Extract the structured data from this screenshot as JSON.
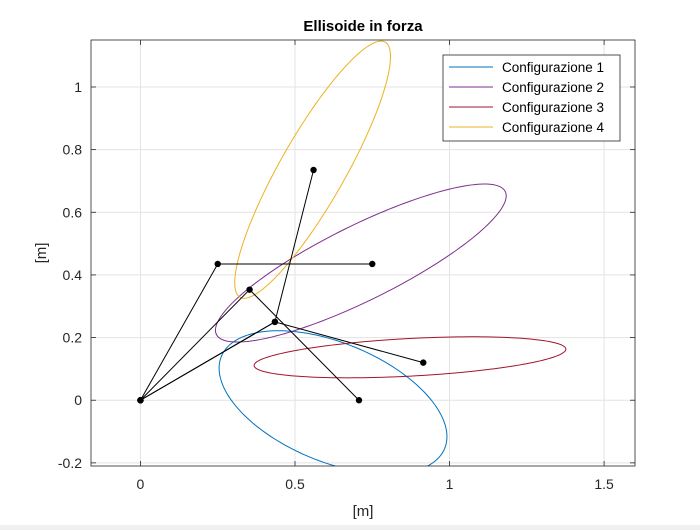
{
  "chart_data": {
    "type": "line",
    "title": "Ellisoide in forza",
    "xlabel": "[m]",
    "ylabel": "[m]",
    "xlim": [
      -0.16,
      1.6
    ],
    "ylim": [
      -0.21,
      1.15
    ],
    "grid": true,
    "legend_position": "top-right",
    "xticks": [
      {
        "value": 0,
        "label": "0"
      },
      {
        "value": 0.5,
        "label": "0.5"
      },
      {
        "value": 1,
        "label": "1"
      },
      {
        "value": 1.5,
        "label": "1.5"
      }
    ],
    "yticks": [
      {
        "value": -0.2,
        "label": "-0.2"
      },
      {
        "value": 0,
        "label": "0"
      },
      {
        "value": 0.2,
        "label": "0.2"
      },
      {
        "value": 0.4,
        "label": "0.4"
      },
      {
        "value": 0.6,
        "label": "0.6"
      },
      {
        "value": 0.8,
        "label": "0.8"
      },
      {
        "value": 1,
        "label": "1"
      }
    ],
    "series": [
      {
        "name": "Configurazione 1",
        "color": "#0072BD",
        "ellipse": {
          "center": [
            0.623,
            -0.007
          ],
          "semi_axes": [
            0.39,
            0.19
          ],
          "angle_deg": -22
        }
      },
      {
        "name": "Configurazione 2",
        "color": "#7E2F8E",
        "ellipse": {
          "center": [
            0.713,
            0.438
          ],
          "semi_axes": [
            0.52,
            0.12
          ],
          "angle_deg": 26
        }
      },
      {
        "name": "Configurazione 3",
        "color": "#A2142F",
        "ellipse": {
          "center": [
            0.872,
            0.137
          ],
          "semi_axes": [
            0.505,
            0.06
          ],
          "angle_deg": 3
        }
      },
      {
        "name": "Configurazione 4",
        "color": "#EDB120",
        "ellipse": {
          "center": [
            0.557,
            0.736
          ],
          "semi_axes": [
            0.47,
            0.105
          ],
          "angle_deg": 60
        }
      }
    ],
    "links": {
      "color": "#000000",
      "polylines": [
        [
          [
            0,
            0
          ],
          [
            0.435,
            0.25
          ],
          [
            0.56,
            0.735
          ]
        ],
        [
          [
            0,
            0
          ],
          [
            0.25,
            0.435
          ],
          [
            0.75,
            0.435
          ]
        ],
        [
          [
            0,
            0
          ],
          [
            0.353,
            0.353
          ],
          [
            0.707,
            0
          ]
        ],
        [
          [
            0,
            0
          ],
          [
            0.435,
            0.25
          ],
          [
            0.915,
            0.12
          ]
        ]
      ]
    }
  }
}
